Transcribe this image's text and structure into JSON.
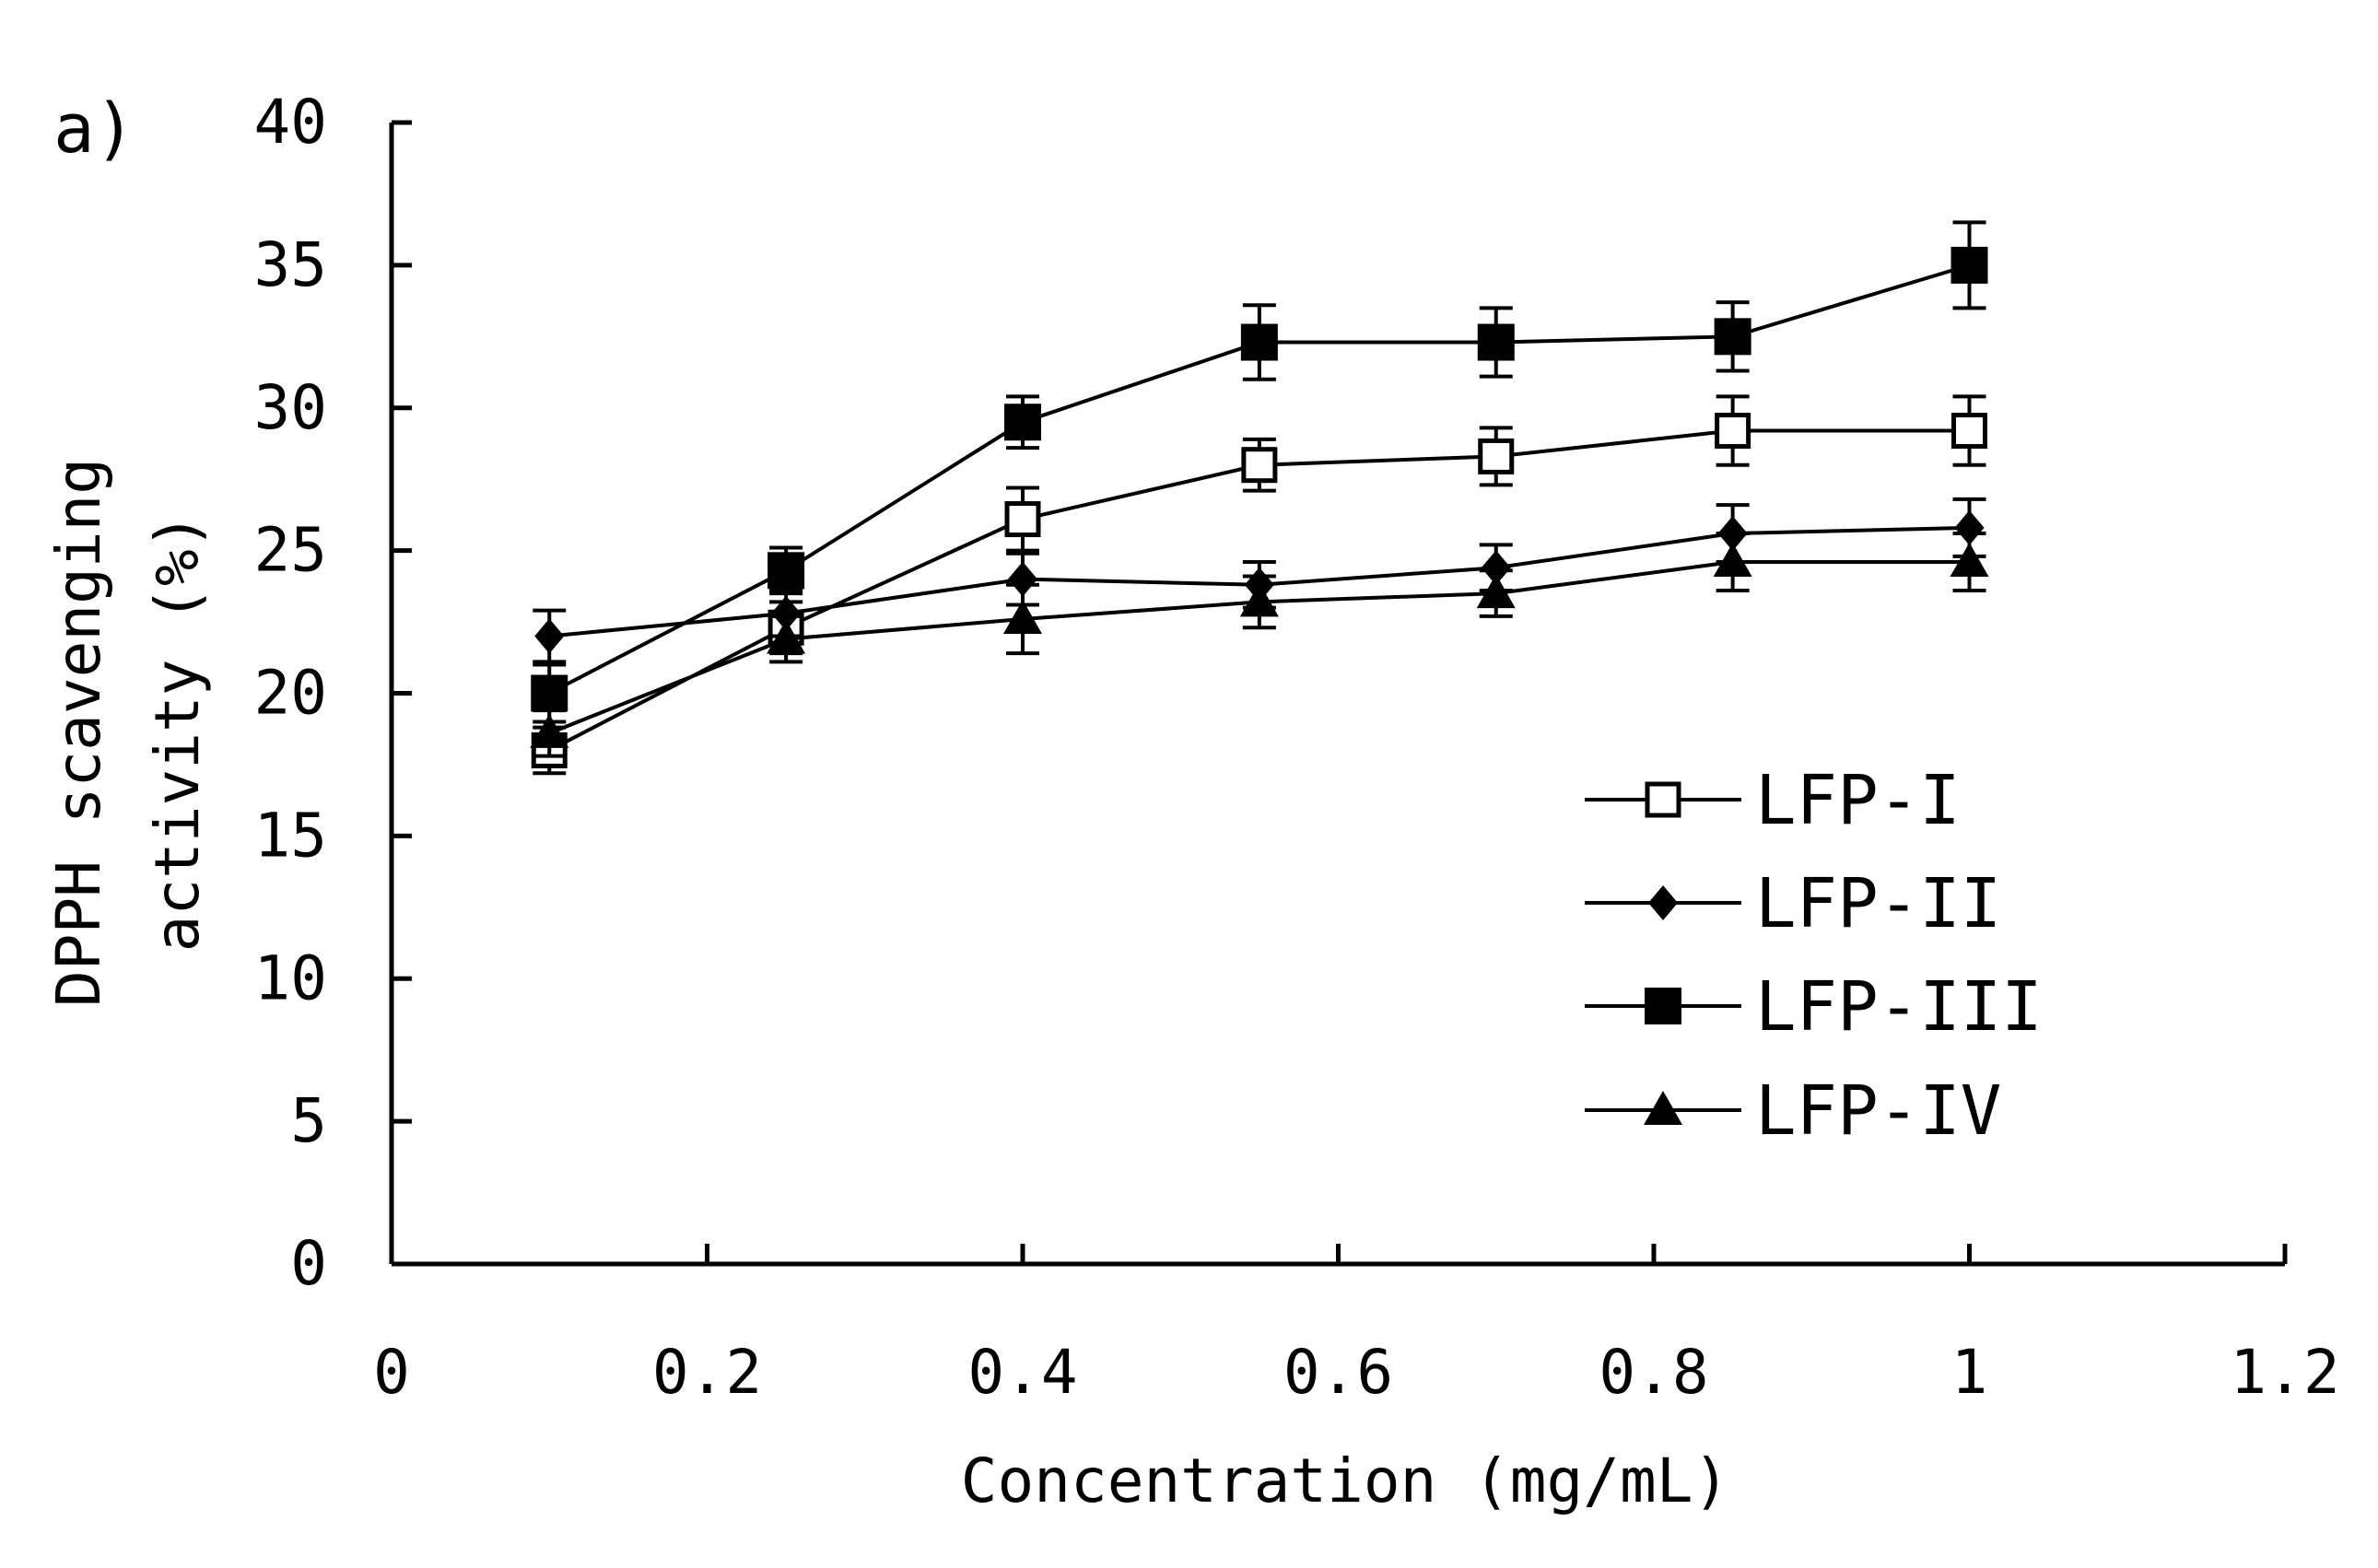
{
  "chart_data": {
    "type": "line",
    "panel_label": "a)",
    "xlabel": "Concentration (mg/mL)",
    "ylabel_line1": "DPPH scavenging",
    "ylabel_line2": "activity (%)",
    "xlim": [
      0,
      1.2
    ],
    "ylim": [
      0,
      40
    ],
    "xticks": [
      0,
      0.2,
      0.4,
      0.6,
      0.8,
      1,
      1.2
    ],
    "xtick_labels": [
      "0",
      "0.2",
      "0.4",
      "0.6",
      "0.8",
      "1",
      "1.2"
    ],
    "yticks": [
      0,
      5,
      10,
      15,
      20,
      25,
      30,
      35,
      40
    ],
    "ytick_labels": [
      "0",
      "5",
      "10",
      "15",
      "20",
      "25",
      "30",
      "35",
      "40"
    ],
    "x": [
      0.1,
      0.25,
      0.4,
      0.55,
      0.7,
      0.85,
      1.0
    ],
    "series": [
      {
        "name": "LFP-I",
        "marker": "square-open",
        "values": [
          18.0,
          22.3,
          26.1,
          28.0,
          28.3,
          29.2,
          29.2
        ],
        "errors": [
          0.8,
          0.9,
          1.1,
          0.9,
          1.0,
          1.2,
          1.2
        ]
      },
      {
        "name": "LFP-II",
        "marker": "diamond-filled",
        "values": [
          22.0,
          22.8,
          24.0,
          23.8,
          24.4,
          25.6,
          25.8
        ],
        "errors": [
          0.9,
          0.8,
          0.9,
          0.8,
          0.8,
          1.0,
          1.0
        ]
      },
      {
        "name": "LFP-III",
        "marker": "square-filled",
        "values": [
          20.0,
          24.3,
          29.5,
          32.3,
          32.3,
          32.5,
          35.0
        ],
        "errors": [
          1.0,
          0.8,
          0.9,
          1.3,
          1.2,
          1.2,
          1.5
        ]
      },
      {
        "name": "LFP-IV",
        "marker": "triangle-filled",
        "values": [
          18.6,
          21.9,
          22.6,
          23.2,
          23.5,
          24.6,
          24.6
        ],
        "errors": [
          0.8,
          0.8,
          1.2,
          0.9,
          0.8,
          1.0,
          1.0
        ]
      }
    ],
    "legend_position": "lower-right",
    "grid": false
  }
}
